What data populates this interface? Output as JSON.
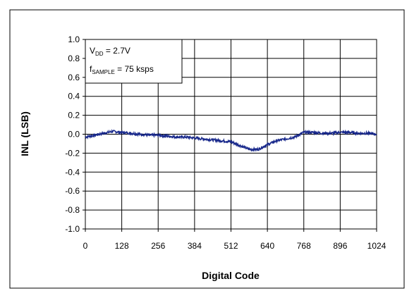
{
  "chart_data": {
    "type": "line",
    "xlabel": "Digital Code",
    "ylabel": "INL (LSB)",
    "xlim": [
      0,
      1024
    ],
    "ylim": [
      -1.0,
      1.0
    ],
    "x_ticks": [
      0,
      128,
      256,
      384,
      512,
      640,
      768,
      896,
      1024
    ],
    "x_tick_labels": [
      "0",
      "128",
      "256",
      "384",
      "512",
      "640",
      "768",
      "896",
      "1024"
    ],
    "y_ticks": [
      1.0,
      0.8,
      0.6,
      0.4,
      0.2,
      0.0,
      -0.2,
      -0.4,
      -0.6,
      -0.8,
      -1.0
    ],
    "y_tick_labels": [
      "1.0",
      "0.8",
      "0.6",
      "0.4",
      "0.2",
      "0.0",
      "-0.2",
      "-0.4",
      "-0.6",
      "-0.8",
      "-1.0"
    ],
    "grid": true,
    "annotation": {
      "line1": {
        "prefix": "V",
        "sub": "DD",
        "suffix": " = 2.7V"
      },
      "line2": {
        "prefix": "f",
        "sub": "SAMPLE",
        "suffix": " = 75 ksps"
      }
    },
    "series": [
      {
        "color": "#1a2a8c",
        "x": [
          0,
          32,
          64,
          96,
          128,
          160,
          192,
          224,
          256,
          288,
          320,
          352,
          384,
          416,
          448,
          480,
          512,
          544,
          576,
          608,
          640,
          672,
          704,
          736,
          768,
          800,
          832,
          864,
          896,
          928,
          960,
          992,
          1024
        ],
        "y": [
          -0.03,
          -0.01,
          0.01,
          0.03,
          0.02,
          0.01,
          0.0,
          -0.01,
          -0.01,
          -0.02,
          -0.03,
          -0.03,
          -0.04,
          -0.05,
          -0.06,
          -0.07,
          -0.08,
          -0.12,
          -0.16,
          -0.16,
          -0.11,
          -0.07,
          -0.05,
          -0.03,
          0.02,
          0.02,
          0.01,
          0.01,
          0.02,
          0.02,
          0.01,
          0.01,
          0.0
        ]
      }
    ]
  }
}
